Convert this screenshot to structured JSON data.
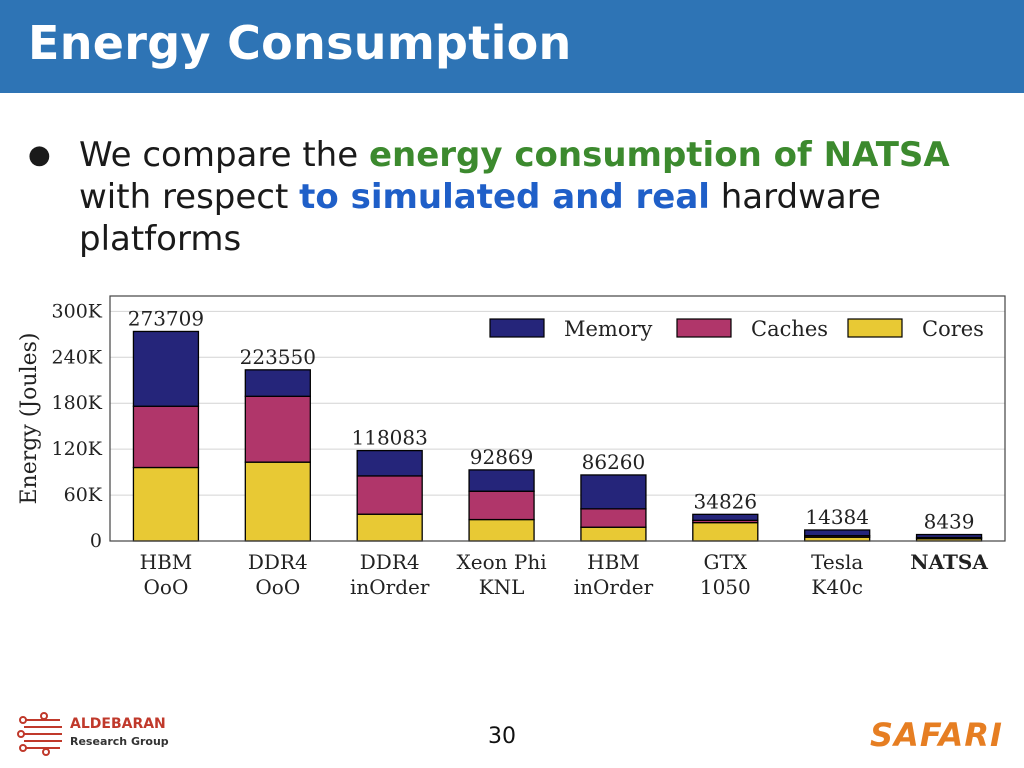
{
  "slide": {
    "title": "Energy Consumption",
    "bullet": {
      "t1": "We compare the ",
      "t2": "energy consumption of NATSA",
      "t3": " with respect ",
      "t4": "to simulated and real",
      "t5": " hardware platforms"
    },
    "page_number": "30",
    "footer_left_line1": "ALDEBARAN",
    "footer_left_line2": "Research Group",
    "footer_right": "SAFARI"
  },
  "colors": {
    "title_bar": "#2e74b5",
    "green_text": "#3c8a2e",
    "blue_text": "#1f5fc8",
    "memory": "#25257a",
    "caches": "#b0366a",
    "cores": "#e8c934"
  },
  "chart_data": {
    "type": "bar",
    "stacked": true,
    "ylabel": "Energy (Joules)",
    "ylim": [
      0,
      320000
    ],
    "yticks": [
      0,
      60000,
      120000,
      180000,
      240000,
      300000
    ],
    "ytick_labels": [
      "0",
      "60K",
      "120K",
      "180K",
      "240K",
      "300K"
    ],
    "legend_position": "top-right",
    "categories": [
      [
        "HBM",
        "OoO"
      ],
      [
        "DDR4",
        "OoO"
      ],
      [
        "DDR4",
        "inOrder"
      ],
      [
        "Xeon Phi",
        "KNL"
      ],
      [
        "HBM",
        "inOrder"
      ],
      [
        "GTX",
        "1050"
      ],
      [
        "Tesla",
        "K40c"
      ],
      [
        "NATSA"
      ]
    ],
    "totals": [
      273709,
      223550,
      118083,
      92869,
      86260,
      34826,
      14384,
      8439
    ],
    "total_labels": [
      "273709",
      "223550",
      "118083",
      "92869",
      "86260",
      "34826",
      "14384",
      "8439"
    ],
    "series": [
      {
        "name": "Cores",
        "values": [
          96000,
          103000,
          35000,
          28000,
          18000,
          24000,
          5000,
          3000
        ]
      },
      {
        "name": "Caches",
        "values": [
          80000,
          86000,
          50000,
          37000,
          24000,
          3000,
          2000,
          1500
        ]
      },
      {
        "name": "Memory",
        "values": [
          97709,
          34550,
          33083,
          27869,
          44260,
          7826,
          7384,
          3939
        ]
      }
    ],
    "legend_order": [
      "Memory",
      "Caches",
      "Cores"
    ]
  }
}
